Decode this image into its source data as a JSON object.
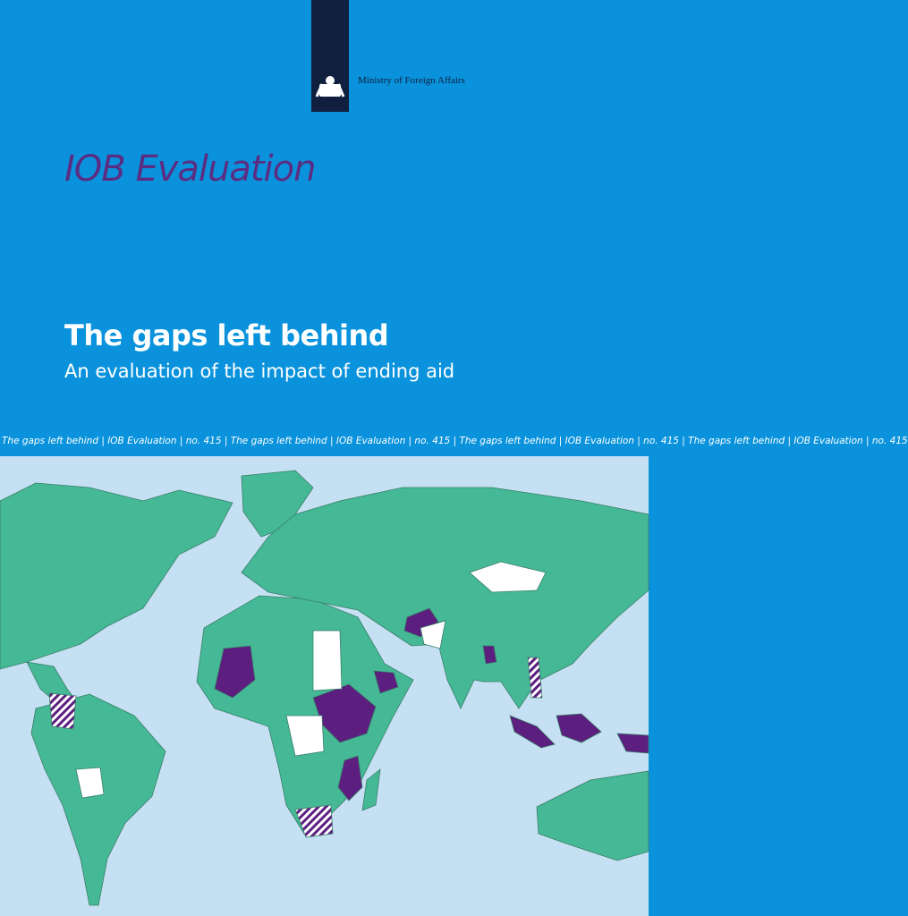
{
  "header": {
    "ministry": "Ministry of Foreign Affairs",
    "series": "IOB Evaluation"
  },
  "title": "The gaps left behind",
  "subtitle": "An evaluation of the impact of ending aid",
  "ribbon": "The gaps left behind | IOB Evaluation | no. 415 | The gaps left behind | IOB Evaluation | no. 415 | The gaps left behind | IOB Evaluation | no. 415 | The gaps left behind | IOB Evaluation | no. 415"
}
